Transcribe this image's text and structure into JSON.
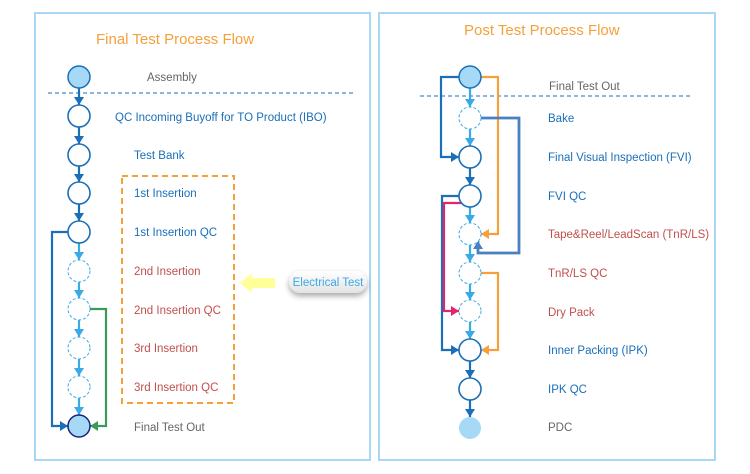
{
  "left_panel": {
    "title": "Final Test Process Flow",
    "steps": [
      {
        "label": "Assembly",
        "color": "#666666",
        "node": "start"
      },
      {
        "label": "QC Incoming Buyoff for TO Product (IBO)",
        "color": "#1a6fb8",
        "node": "solid"
      },
      {
        "label": "Test Bank",
        "color": "#1a6fb8",
        "node": "solid"
      },
      {
        "label": "1st Insertion",
        "color": "#1a6fb8",
        "node": "solid"
      },
      {
        "label": "1st Insertion QC",
        "color": "#1a6fb8",
        "node": "solid"
      },
      {
        "label": "2nd Insertion",
        "color": "#c0504d",
        "node": "dashed"
      },
      {
        "label": "2nd Insertion QC",
        "color": "#c0504d",
        "node": "dashed"
      },
      {
        "label": "3rd Insertion",
        "color": "#c0504d",
        "node": "dashed"
      },
      {
        "label": "3rd Insertion QC",
        "color": "#c0504d",
        "node": "dashed"
      },
      {
        "label": "Final Test Out",
        "color": "#666666",
        "node": "end"
      }
    ],
    "callout": "Electrical Test"
  },
  "right_panel": {
    "title": "Post Test Process Flow",
    "steps": [
      {
        "label": "Final Test Out",
        "color": "#666666",
        "node": "start"
      },
      {
        "label": "Bake",
        "color": "#1a6fb8",
        "node": "dashed"
      },
      {
        "label": "Final Visual Inspection (FVI)",
        "color": "#1a6fb8",
        "node": "solid"
      },
      {
        "label": "FVI QC",
        "color": "#1a6fb8",
        "node": "solid"
      },
      {
        "label": "Tape&Reel/LeadScan (TnR/LS)",
        "color": "#c0504d",
        "node": "dashed"
      },
      {
        "label": "TnR/LS QC",
        "color": "#c0504d",
        "node": "dashed"
      },
      {
        "label": "Dry Pack",
        "color": "#c0504d",
        "node": "dashed"
      },
      {
        "label": "Inner Packing (IPK)",
        "color": "#1a6fb8",
        "node": "solid"
      },
      {
        "label": "IPK QC",
        "color": "#1a6fb8",
        "node": "solid"
      },
      {
        "label": "PDC",
        "color": "#666666",
        "node": "end"
      }
    ]
  },
  "colors": {
    "panel_border": "#a8d8f5",
    "title": "#f5a03a",
    "main_flow": "#1a6fb8",
    "optional_flow": "#3aaae6",
    "node_fill": "#a6d9f5",
    "green_bypass": "#3a9a5a",
    "orange_bypass": "#f5a03a",
    "pink_bypass": "#e6246e",
    "bake_loop": "#4a7fc1",
    "callout_arrow": "#ffff99"
  }
}
